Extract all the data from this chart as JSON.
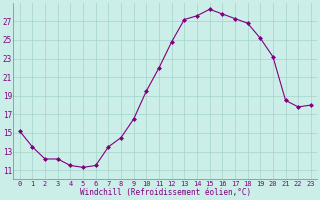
{
  "hours": [
    0,
    1,
    2,
    3,
    4,
    5,
    6,
    7,
    8,
    9,
    10,
    11,
    12,
    13,
    14,
    15,
    16,
    17,
    18,
    19,
    20,
    21,
    22,
    23
  ],
  "values": [
    15.2,
    13.5,
    12.2,
    12.2,
    11.5,
    11.3,
    11.5,
    13.5,
    14.5,
    16.5,
    19.5,
    22.0,
    24.8,
    27.2,
    27.6,
    28.3,
    27.8,
    27.3,
    26.8,
    25.2,
    23.2,
    18.5,
    17.8,
    18.0
  ],
  "line_color": "#800080",
  "marker": "D",
  "marker_size": 2,
  "bg_color": "#cceee8",
  "grid_color": "#aad8d0",
  "xlabel": "Windchill (Refroidissement éolien,°C)",
  "xlabel_color": "#800080",
  "tick_color": "#800080",
  "ylim": [
    10,
    29
  ],
  "yticks": [
    11,
    13,
    15,
    17,
    19,
    21,
    23,
    25,
    27
  ],
  "xlim": [
    -0.5,
    23.5
  ],
  "xticks": [
    0,
    1,
    2,
    3,
    4,
    5,
    6,
    7,
    8,
    9,
    10,
    11,
    12,
    13,
    14,
    15,
    16,
    17,
    18,
    19,
    20,
    21,
    22,
    23
  ]
}
